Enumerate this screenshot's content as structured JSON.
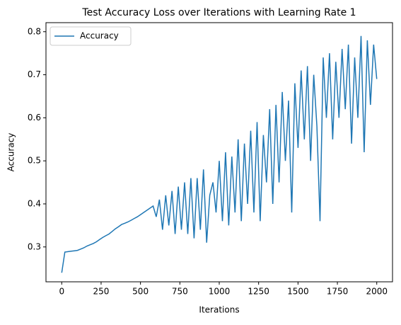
{
  "chart_data": {
    "type": "line",
    "title": "Test Accuracy Loss over Iterations with Learning Rate 1",
    "x_label": "Iterations",
    "y_label": "Accuracy",
    "x": [
      0,
      20,
      40,
      60,
      80,
      100,
      120,
      140,
      160,
      180,
      200,
      220,
      240,
      260,
      280,
      300,
      320,
      340,
      360,
      380,
      400,
      420,
      440,
      460,
      480,
      500,
      520,
      540,
      560,
      580,
      600,
      620,
      640,
      660,
      680,
      700,
      720,
      740,
      760,
      780,
      800,
      820,
      840,
      860,
      880,
      900,
      920,
      940,
      960,
      980,
      1000,
      1020,
      1040,
      1060,
      1080,
      1100,
      1120,
      1140,
      1160,
      1180,
      1200,
      1220,
      1240,
      1260,
      1280,
      1300,
      1320,
      1340,
      1360,
      1380,
      1400,
      1420,
      1440,
      1460,
      1480,
      1500,
      1520,
      1540,
      1560,
      1580,
      1600,
      1620,
      1640,
      1660,
      1680,
      1700,
      1720,
      1740,
      1760,
      1780,
      1800,
      1820,
      1840,
      1860,
      1880,
      1900,
      1920,
      1940,
      1960,
      1980,
      2000
    ],
    "series": [
      {
        "name": "Accuracy",
        "color": "#1f77b4",
        "values": [
          0.24,
          0.288,
          0.289,
          0.29,
          0.291,
          0.292,
          0.295,
          0.298,
          0.302,
          0.305,
          0.308,
          0.312,
          0.317,
          0.322,
          0.326,
          0.33,
          0.336,
          0.342,
          0.347,
          0.352,
          0.355,
          0.358,
          0.362,
          0.366,
          0.37,
          0.375,
          0.38,
          0.385,
          0.39,
          0.395,
          0.37,
          0.41,
          0.34,
          0.42,
          0.35,
          0.43,
          0.33,
          0.44,
          0.34,
          0.45,
          0.33,
          0.46,
          0.32,
          0.46,
          0.34,
          0.48,
          0.31,
          0.42,
          0.45,
          0.38,
          0.5,
          0.36,
          0.52,
          0.35,
          0.51,
          0.38,
          0.55,
          0.36,
          0.54,
          0.4,
          0.57,
          0.38,
          0.59,
          0.36,
          0.56,
          0.45,
          0.62,
          0.4,
          0.63,
          0.45,
          0.66,
          0.5,
          0.64,
          0.38,
          0.68,
          0.53,
          0.71,
          0.55,
          0.72,
          0.5,
          0.7,
          0.58,
          0.36,
          0.74,
          0.6,
          0.75,
          0.55,
          0.73,
          0.6,
          0.76,
          0.62,
          0.77,
          0.54,
          0.74,
          0.6,
          0.79,
          0.52,
          0.78,
          0.63,
          0.77,
          0.69
        ]
      }
    ],
    "xlim": [
      -100,
      2100
    ],
    "ylim": [
      0.219,
      0.821
    ],
    "xticks": [
      0,
      250,
      500,
      750,
      1000,
      1250,
      1500,
      1750,
      2000
    ],
    "yticks": [
      0.3,
      0.4,
      0.5,
      0.6,
      0.7,
      0.8
    ],
    "legend": "upper left"
  }
}
